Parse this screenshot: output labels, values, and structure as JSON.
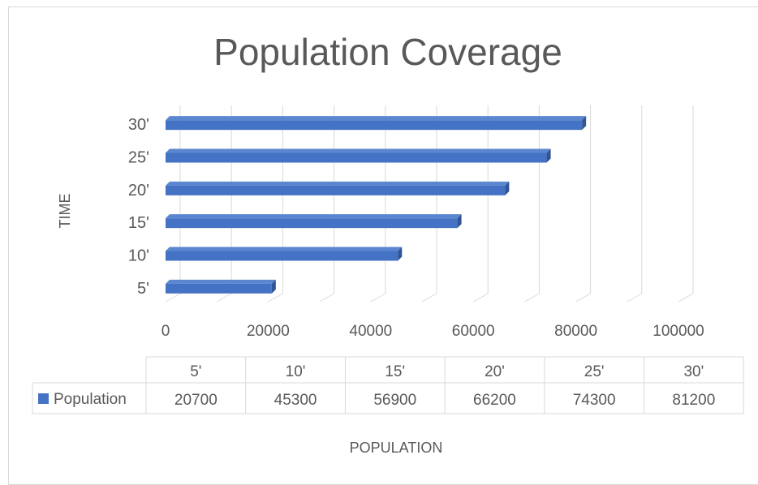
{
  "chart_data": {
    "type": "bar",
    "orientation": "horizontal",
    "style": "3d",
    "title": "Population Coverage",
    "xlabel": "POPULATION",
    "ylabel": "TIME",
    "categories": [
      "5'",
      "10'",
      "15'",
      "20'",
      "25'",
      "30'"
    ],
    "series": [
      {
        "name": "Population",
        "values": [
          20700,
          45300,
          56900,
          66200,
          74300,
          81200
        ]
      }
    ],
    "xlim": [
      0,
      100000
    ],
    "xticks": [
      "0",
      "20000",
      "40000",
      "60000",
      "80000",
      "100000"
    ],
    "grid": true,
    "legend": "data-table-left",
    "data_table": true,
    "table_values": [
      "20700",
      "45300",
      "56900",
      "66200",
      "74300",
      "81200"
    ],
    "colors": {
      "bar": "#4472c4",
      "bar_side": "#2f5597",
      "bar_top": "#5b86d0",
      "grid": "#d9d9d9",
      "text": "#595959",
      "title": "#595959",
      "table_border": "#d9d9d9"
    }
  }
}
